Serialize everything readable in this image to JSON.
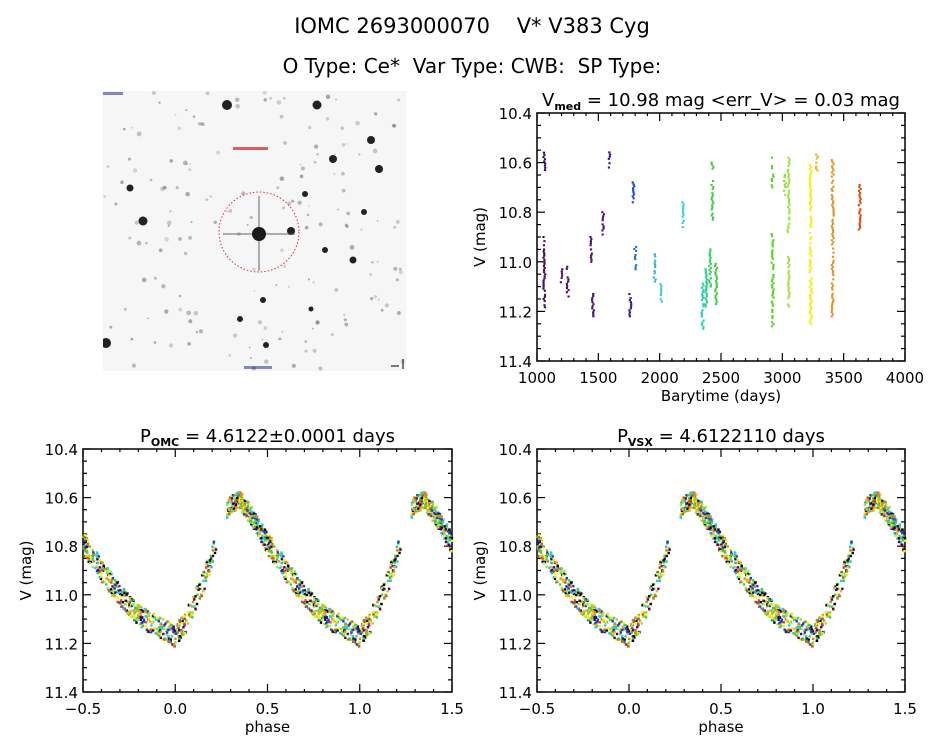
{
  "header": {
    "title_line1": "IOMC 2693000070    V* V383 Cyg",
    "title_line2": "O Type: Ce*  Var Type: CWB:  SP Type:"
  },
  "finder_chart": {
    "description": "Sky image of field around target, red dotted circle marking target star",
    "marker_color": "#d22020"
  },
  "chart_data": [
    {
      "id": "lightcurve",
      "type": "scatter",
      "title_main": "V",
      "title_sub": "med",
      "title_rest": " = 10.98 mag <err_V> = 0.03 mag",
      "xlabel": "Barytime (days)",
      "ylabel": "V (mag)",
      "xlim": [
        1000,
        4000
      ],
      "ylim": [
        11.4,
        10.4
      ],
      "y_inverted": true,
      "xticks": [
        1000,
        1500,
        2000,
        2500,
        3000,
        3500,
        4000
      ],
      "yticks": [
        "10.4",
        "10.6",
        "10.8",
        "11.0",
        "11.2",
        "11.4"
      ],
      "segments": [
        {
          "t": 1060,
          "v0": 10.56,
          "v1": 10.63,
          "color": "#3a0a5a"
        },
        {
          "t": 1060,
          "v0": 10.9,
          "v1": 11.2,
          "color": "#3a0a5a"
        },
        {
          "t": 1200,
          "v0": 11.03,
          "v1": 11.1,
          "color": "#4a0a6a"
        },
        {
          "t": 1250,
          "v0": 11.02,
          "v1": 11.14,
          "color": "#4a0a6a"
        },
        {
          "t": 1440,
          "v0": 10.9,
          "v1": 11.0,
          "color": "#4a0a70"
        },
        {
          "t": 1455,
          "v0": 11.13,
          "v1": 11.22,
          "color": "#4a0a70"
        },
        {
          "t": 1540,
          "v0": 10.8,
          "v1": 10.89,
          "color": "#4a0a80"
        },
        {
          "t": 1590,
          "v0": 10.55,
          "v1": 10.62,
          "color": "#3a0a90"
        },
        {
          "t": 1760,
          "v0": 11.13,
          "v1": 11.22,
          "color": "#2a1a90"
        },
        {
          "t": 1785,
          "v0": 10.68,
          "v1": 10.76,
          "color": "#1a40d0"
        },
        {
          "t": 1800,
          "v0": 10.94,
          "v1": 11.03,
          "color": "#2070c0"
        },
        {
          "t": 1960,
          "v0": 10.97,
          "v1": 11.08,
          "color": "#30b0d0"
        },
        {
          "t": 2010,
          "v0": 11.09,
          "v1": 11.16,
          "color": "#30c8e0"
        },
        {
          "t": 2190,
          "v0": 10.76,
          "v1": 10.86,
          "color": "#30d0e0"
        },
        {
          "t": 2350,
          "v0": 11.08,
          "v1": 11.27,
          "color": "#20d0b0"
        },
        {
          "t": 2380,
          "v0": 11.03,
          "v1": 11.18,
          "color": "#20d080"
        },
        {
          "t": 2410,
          "v0": 10.95,
          "v1": 11.1,
          "color": "#30d060"
        },
        {
          "t": 2430,
          "v0": 10.6,
          "v1": 10.83,
          "color": "#40c840"
        },
        {
          "t": 2460,
          "v0": 11.0,
          "v1": 11.17,
          "color": "#40c840"
        },
        {
          "t": 2920,
          "v0": 10.58,
          "v1": 10.7,
          "color": "#50d020"
        },
        {
          "t": 2920,
          "v0": 10.88,
          "v1": 11.26,
          "color": "#50d020"
        },
        {
          "t": 3020,
          "v0": 10.65,
          "v1": 10.73,
          "color": "#90e030"
        },
        {
          "t": 3050,
          "v0": 10.58,
          "v1": 10.88,
          "color": "#a0e040"
        },
        {
          "t": 3050,
          "v0": 10.98,
          "v1": 11.18,
          "color": "#a0e040"
        },
        {
          "t": 3230,
          "v0": 10.61,
          "v1": 11.25,
          "color": "#f0f000"
        },
        {
          "t": 3280,
          "v0": 10.56,
          "v1": 10.64,
          "color": "#f0b020"
        },
        {
          "t": 3410,
          "v0": 10.59,
          "v1": 11.22,
          "color": "#e09020"
        },
        {
          "t": 3630,
          "v0": 10.69,
          "v1": 10.87,
          "color": "#d05010"
        }
      ]
    },
    {
      "id": "phased_omc",
      "type": "scatter",
      "title_main": "P",
      "title_sub": "OMC",
      "title_rest": " = 4.6122±0.0001 days",
      "xlabel": "phase",
      "ylabel": "V (mag)",
      "xlim": [
        -0.5,
        1.5
      ],
      "ylim": [
        11.4,
        10.4
      ],
      "y_inverted": true,
      "xticks": [
        "-0.5",
        "0.0",
        "0.5",
        "1.0",
        "1.5"
      ],
      "yticks": [
        "10.4",
        "10.6",
        "10.8",
        "11.0",
        "11.2",
        "11.4"
      ],
      "curve_phase": [
        0.0,
        0.05,
        0.1,
        0.15,
        0.2,
        0.25,
        0.3,
        0.35,
        0.4,
        0.45,
        0.5,
        0.55,
        0.6,
        0.65,
        0.7,
        0.75,
        0.8,
        0.85,
        0.9,
        0.95,
        1.0
      ],
      "curve_mag": [
        11.17,
        11.12,
        11.04,
        10.95,
        10.84,
        10.72,
        10.62,
        10.61,
        10.66,
        10.72,
        10.79,
        10.84,
        10.9,
        10.95,
        11.0,
        11.04,
        11.08,
        11.11,
        11.13,
        11.15,
        11.17
      ]
    },
    {
      "id": "phased_vsx",
      "type": "scatter",
      "title_main": "P",
      "title_sub": "VSX",
      "title_rest": " = 4.6122110 days",
      "xlabel": "phase",
      "ylabel": "V (mag)",
      "xlim": [
        -0.5,
        1.5
      ],
      "ylim": [
        11.4,
        10.4
      ],
      "y_inverted": true,
      "xticks": [
        "-0.5",
        "0.0",
        "0.5",
        "1.0",
        "1.5"
      ],
      "yticks": [
        "10.4",
        "10.6",
        "10.8",
        "11.0",
        "11.2",
        "11.4"
      ],
      "curve_phase": [
        0.0,
        0.05,
        0.1,
        0.15,
        0.2,
        0.25,
        0.3,
        0.35,
        0.4,
        0.45,
        0.5,
        0.55,
        0.6,
        0.65,
        0.7,
        0.75,
        0.8,
        0.85,
        0.9,
        0.95,
        1.0
      ],
      "curve_mag": [
        11.17,
        11.12,
        11.04,
        10.95,
        10.84,
        10.72,
        10.62,
        10.61,
        10.66,
        10.72,
        10.79,
        10.84,
        10.9,
        10.95,
        11.0,
        11.04,
        11.08,
        11.11,
        11.13,
        11.15,
        11.17
      ]
    }
  ],
  "palette": [
    "#3a0a6a",
    "#1a40d0",
    "#30c8e0",
    "#20d080",
    "#50d020",
    "#a0e040",
    "#f0f000",
    "#f0b020",
    "#e08020",
    "#d05010",
    "#000000"
  ]
}
